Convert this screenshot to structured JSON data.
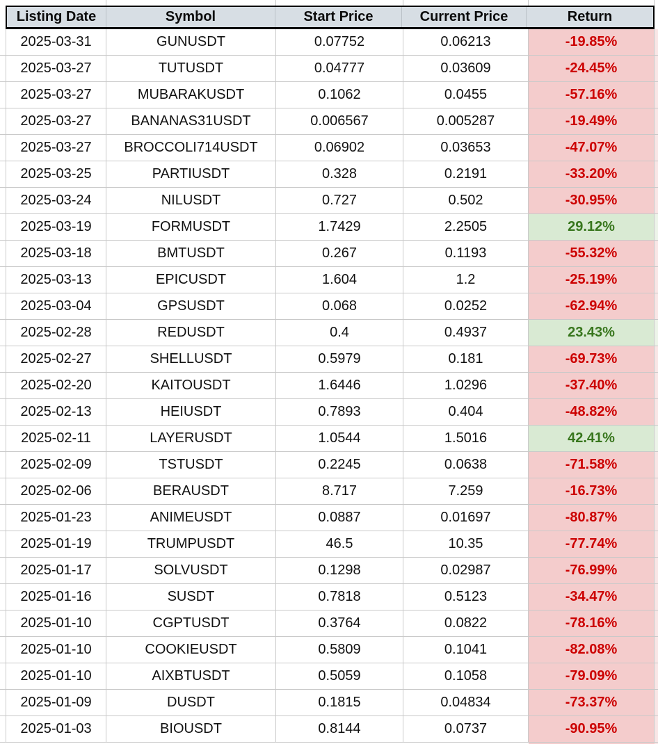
{
  "colors": {
    "header_bg": "#d7dee4",
    "gridline": "#c9c9c9",
    "header_border": "#000000",
    "negative_bg": "#f4cccc",
    "negative_text": "#cc0000",
    "positive_bg": "#d9ead3",
    "positive_text": "#38761d"
  },
  "table": {
    "columns": [
      "Listing Date",
      "Symbol",
      "Start Price",
      "Current Price",
      "Return"
    ],
    "rows": [
      {
        "date": "2025-03-31",
        "symbol": "GUNUSDT",
        "start": "0.07752",
        "current": "0.06213",
        "ret": "-19.85%"
      },
      {
        "date": "2025-03-27",
        "symbol": "TUTUSDT",
        "start": "0.04777",
        "current": "0.03609",
        "ret": "-24.45%"
      },
      {
        "date": "2025-03-27",
        "symbol": "MUBARAKUSDT",
        "start": "0.1062",
        "current": "0.0455",
        "ret": "-57.16%"
      },
      {
        "date": "2025-03-27",
        "symbol": "BANANAS31USDT",
        "start": "0.006567",
        "current": "0.005287",
        "ret": "-19.49%"
      },
      {
        "date": "2025-03-27",
        "symbol": "BROCCOLI714USDT",
        "start": "0.06902",
        "current": "0.03653",
        "ret": "-47.07%"
      },
      {
        "date": "2025-03-25",
        "symbol": "PARTIUSDT",
        "start": "0.328",
        "current": "0.2191",
        "ret": "-33.20%"
      },
      {
        "date": "2025-03-24",
        "symbol": "NILUSDT",
        "start": "0.727",
        "current": "0.502",
        "ret": "-30.95%"
      },
      {
        "date": "2025-03-19",
        "symbol": "FORMUSDT",
        "start": "1.7429",
        "current": "2.2505",
        "ret": "29.12%"
      },
      {
        "date": "2025-03-18",
        "symbol": "BMTUSDT",
        "start": "0.267",
        "current": "0.1193",
        "ret": "-55.32%"
      },
      {
        "date": "2025-03-13",
        "symbol": "EPICUSDT",
        "start": "1.604",
        "current": "1.2",
        "ret": "-25.19%"
      },
      {
        "date": "2025-03-04",
        "symbol": "GPSUSDT",
        "start": "0.068",
        "current": "0.0252",
        "ret": "-62.94%"
      },
      {
        "date": "2025-02-28",
        "symbol": "REDUSDT",
        "start": "0.4",
        "current": "0.4937",
        "ret": "23.43%"
      },
      {
        "date": "2025-02-27",
        "symbol": "SHELLUSDT",
        "start": "0.5979",
        "current": "0.181",
        "ret": "-69.73%"
      },
      {
        "date": "2025-02-20",
        "symbol": "KAITOUSDT",
        "start": "1.6446",
        "current": "1.0296",
        "ret": "-37.40%"
      },
      {
        "date": "2025-02-13",
        "symbol": "HEIUSDT",
        "start": "0.7893",
        "current": "0.404",
        "ret": "-48.82%"
      },
      {
        "date": "2025-02-11",
        "symbol": "LAYERUSDT",
        "start": "1.0544",
        "current": "1.5016",
        "ret": "42.41%"
      },
      {
        "date": "2025-02-09",
        "symbol": "TSTUSDT",
        "start": "0.2245",
        "current": "0.0638",
        "ret": "-71.58%"
      },
      {
        "date": "2025-02-06",
        "symbol": "BERAUSDT",
        "start": "8.717",
        "current": "7.259",
        "ret": "-16.73%"
      },
      {
        "date": "2025-01-23",
        "symbol": "ANIMEUSDT",
        "start": "0.0887",
        "current": "0.01697",
        "ret": "-80.87%"
      },
      {
        "date": "2025-01-19",
        "symbol": "TRUMPUSDT",
        "start": "46.5",
        "current": "10.35",
        "ret": "-77.74%"
      },
      {
        "date": "2025-01-17",
        "symbol": "SOLVUSDT",
        "start": "0.1298",
        "current": "0.02987",
        "ret": "-76.99%"
      },
      {
        "date": "2025-01-16",
        "symbol": "SUSDT",
        "start": "0.7818",
        "current": "0.5123",
        "ret": "-34.47%"
      },
      {
        "date": "2025-01-10",
        "symbol": "CGPTUSDT",
        "start": "0.3764",
        "current": "0.0822",
        "ret": "-78.16%"
      },
      {
        "date": "2025-01-10",
        "symbol": "COOKIEUSDT",
        "start": "0.5809",
        "current": "0.1041",
        "ret": "-82.08%"
      },
      {
        "date": "2025-01-10",
        "symbol": "AIXBTUSDT",
        "start": "0.5059",
        "current": "0.1058",
        "ret": "-79.09%"
      },
      {
        "date": "2025-01-09",
        "symbol": "DUSDT",
        "start": "0.1815",
        "current": "0.04834",
        "ret": "-73.37%"
      },
      {
        "date": "2025-01-03",
        "symbol": "BIOUSDT",
        "start": "0.8144",
        "current": "0.0737",
        "ret": "-90.95%"
      }
    ]
  }
}
